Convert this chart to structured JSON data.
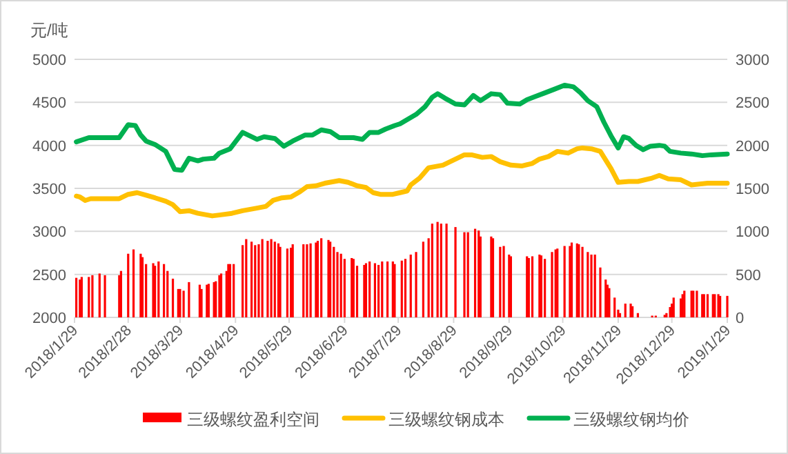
{
  "chart_data": {
    "type": "bar",
    "ylabel": "元/吨",
    "xlim": [
      "2018-01-29",
      "2019-01-29"
    ],
    "xticks": [
      {
        "value": "2018-01-29",
        "label": "2018/1/29"
      },
      {
        "value": "2018-02-28",
        "label": "2018/2/28"
      },
      {
        "value": "2018-03-29",
        "label": "2018/3/29"
      },
      {
        "value": "2018-04-29",
        "label": "2018/4/29"
      },
      {
        "value": "2018-05-29",
        "label": "2018/5/29"
      },
      {
        "value": "2018-06-29",
        "label": "2018/6/29"
      },
      {
        "value": "2018-07-29",
        "label": "2018/7/29"
      },
      {
        "value": "2018-08-29",
        "label": "2018/8/29"
      },
      {
        "value": "2018-09-29",
        "label": "2018/9/29"
      },
      {
        "value": "2018-10-29",
        "label": "2018/10/29"
      },
      {
        "value": "2018-11-29",
        "label": "2018/11/29"
      },
      {
        "value": "2018-12-29",
        "label": "2018/12/29"
      },
      {
        "value": "2019-01-29",
        "label": "2019/1/29"
      }
    ],
    "ylim": [
      2000,
      5000
    ],
    "yticks": [
      2000,
      2500,
      3000,
      3500,
      4000,
      4500,
      5000
    ],
    "y2lim": [
      0,
      3000
    ],
    "y2ticks": [
      0,
      500,
      1000,
      1500,
      2000,
      2500,
      3000
    ],
    "grid": "y",
    "legend": "bottom",
    "series": [
      {
        "name": "三级螺纹盈利空间",
        "axis": "y2",
        "color": "#ff0000",
        "x": [
          "2018-01-30",
          "2018-02-01",
          "2018-02-02",
          "2018-02-06",
          "2018-02-08",
          "2018-02-12",
          "2018-02-15",
          "2018-02-23",
          "2018-02-24",
          "2018-02-28",
          "2018-03-03",
          "2018-03-07",
          "2018-03-08",
          "2018-03-10",
          "2018-03-14",
          "2018-03-15",
          "2018-03-17",
          "2018-03-20",
          "2018-03-22",
          "2018-03-25",
          "2018-03-28",
          "2018-03-29",
          "2018-03-31",
          "2018-04-03",
          "2018-04-09",
          "2018-04-10",
          "2018-04-13",
          "2018-04-14",
          "2018-04-17",
          "2018-04-18",
          "2018-04-20",
          "2018-04-21",
          "2018-04-24",
          "2018-04-25",
          "2018-04-26",
          "2018-04-28",
          "2018-05-03",
          "2018-05-05",
          "2018-05-08",
          "2018-05-10",
          "2018-05-12",
          "2018-05-14",
          "2018-05-17",
          "2018-05-19",
          "2018-05-21",
          "2018-05-23",
          "2018-05-24",
          "2018-05-28",
          "2018-05-30",
          "2018-05-31",
          "2018-06-06",
          "2018-06-08",
          "2018-06-10",
          "2018-06-13",
          "2018-06-14",
          "2018-06-16",
          "2018-06-20",
          "2018-06-21",
          "2018-06-23",
          "2018-06-25",
          "2018-06-27",
          "2018-06-29",
          "2018-07-03",
          "2018-07-04",
          "2018-07-06",
          "2018-07-10",
          "2018-07-11",
          "2018-07-13",
          "2018-07-16",
          "2018-07-18",
          "2018-07-20",
          "2018-07-23",
          "2018-07-26",
          "2018-07-27",
          "2018-07-31",
          "2018-08-02",
          "2018-08-05",
          "2018-08-08",
          "2018-08-12",
          "2018-08-15",
          "2018-08-17",
          "2018-08-20",
          "2018-08-22",
          "2018-08-25",
          "2018-08-30",
          "2018-09-04",
          "2018-09-06",
          "2018-09-10",
          "2018-09-12",
          "2018-09-13",
          "2018-09-19",
          "2018-09-20",
          "2018-09-24",
          "2018-09-26",
          "2018-09-29",
          "2018-09-30",
          "2018-10-09",
          "2018-10-10",
          "2018-10-12",
          "2018-10-16",
          "2018-10-17",
          "2018-10-19",
          "2018-10-23",
          "2018-10-25",
          "2018-10-26",
          "2018-10-30",
          "2018-11-02",
          "2018-11-03",
          "2018-11-06",
          "2018-11-07",
          "2018-11-09",
          "2018-11-12",
          "2018-11-14",
          "2018-11-16",
          "2018-11-19",
          "2018-11-22",
          "2018-11-23",
          "2018-11-24",
          "2018-11-27",
          "2018-11-29",
          "2018-11-30",
          "2018-12-03",
          "2018-12-06",
          "2018-12-07",
          "2018-12-10",
          "2018-12-18",
          "2018-12-20",
          "2018-12-25",
          "2018-12-26",
          "2018-12-28",
          "2018-12-29",
          "2018-12-30",
          "2019-01-03",
          "2019-01-04",
          "2019-01-05",
          "2019-01-09",
          "2019-01-10",
          "2019-01-12",
          "2019-01-15",
          "2019-01-16",
          "2019-01-18",
          "2019-01-21",
          "2019-01-22",
          "2019-01-24",
          "2019-01-25",
          "2019-01-29"
        ],
        "values": [
          460,
          440,
          470,
          470,
          490,
          510,
          490,
          490,
          540,
          740,
          790,
          740,
          700,
          620,
          630,
          600,
          650,
          620,
          540,
          450,
          330,
          330,
          310,
          410,
          380,
          330,
          380,
          390,
          410,
          420,
          490,
          510,
          540,
          620,
          620,
          620,
          840,
          910,
          880,
          840,
          850,
          910,
          890,
          910,
          880,
          860,
          820,
          800,
          810,
          850,
          850,
          850,
          860,
          870,
          890,
          920,
          900,
          880,
          820,
          760,
          740,
          680,
          690,
          680,
          600,
          610,
          630,
          650,
          630,
          610,
          650,
          650,
          650,
          620,
          660,
          680,
          730,
          760,
          880,
          920,
          1090,
          1110,
          1090,
          1090,
          1050,
          990,
          990,
          1030,
          1010,
          940,
          940,
          920,
          820,
          830,
          730,
          710,
          710,
          690,
          710,
          730,
          720,
          680,
          760,
          790,
          800,
          830,
          830,
          870,
          860,
          850,
          820,
          760,
          730,
          730,
          580,
          440,
          380,
          340,
          230,
          90,
          50,
          160,
          160,
          130,
          50,
          20,
          20,
          30,
          50,
          120,
          160,
          230,
          220,
          270,
          310,
          310,
          310,
          310,
          270,
          270,
          270,
          270,
          270,
          270,
          250,
          250
        ]
      },
      {
        "name": "三级螺纹钢成本",
        "type": "line",
        "color": "#ffc000",
        "x": [
          "2018-01-30",
          "2018-02-01",
          "2018-02-04",
          "2018-02-07",
          "2018-02-23",
          "2018-02-28",
          "2018-03-05",
          "2018-03-10",
          "2018-03-15",
          "2018-03-21",
          "2018-03-25",
          "2018-03-29",
          "2018-04-03",
          "2018-04-08",
          "2018-04-16",
          "2018-04-20",
          "2018-04-27",
          "2018-05-03",
          "2018-05-11",
          "2018-05-16",
          "2018-05-20",
          "2018-05-25",
          "2018-05-30",
          "2018-06-04",
          "2018-06-08",
          "2018-06-13",
          "2018-06-18",
          "2018-06-26",
          "2018-07-01",
          "2018-07-06",
          "2018-07-11",
          "2018-07-15",
          "2018-07-19",
          "2018-07-26",
          "2018-07-30",
          "2018-08-03",
          "2018-08-05",
          "2018-08-10",
          "2018-08-15",
          "2018-08-23",
          "2018-08-30",
          "2018-09-04",
          "2018-09-08",
          "2018-09-14",
          "2018-09-19",
          "2018-09-24",
          "2018-09-30",
          "2018-10-06",
          "2018-10-12",
          "2018-10-16",
          "2018-10-21",
          "2018-10-26",
          "2018-11-01",
          "2018-11-06",
          "2018-11-09",
          "2018-11-14",
          "2018-11-19",
          "2018-11-25",
          "2018-11-29",
          "2018-12-05",
          "2018-12-10",
          "2018-12-18",
          "2018-12-22",
          "2018-12-27",
          "2019-01-03",
          "2019-01-09",
          "2019-01-18",
          "2019-01-29"
        ],
        "values": [
          3410,
          3400,
          3360,
          3380,
          3380,
          3430,
          3450,
          3420,
          3390,
          3350,
          3310,
          3230,
          3240,
          3210,
          3180,
          3190,
          3210,
          3240,
          3270,
          3290,
          3360,
          3390,
          3400,
          3460,
          3520,
          3530,
          3560,
          3590,
          3570,
          3530,
          3510,
          3450,
          3430,
          3430,
          3450,
          3470,
          3540,
          3620,
          3740,
          3770,
          3840,
          3890,
          3890,
          3860,
          3870,
          3810,
          3770,
          3760,
          3790,
          3840,
          3870,
          3930,
          3910,
          3960,
          3970,
          3960,
          3930,
          3730,
          3570,
          3580,
          3580,
          3620,
          3650,
          3610,
          3600,
          3540,
          3560,
          3560
        ]
      },
      {
        "name": "三级螺纹钢均价",
        "type": "line",
        "color": "#00b050",
        "x": [
          "2018-01-30",
          "2018-02-06",
          "2018-02-23",
          "2018-02-28",
          "2018-03-04",
          "2018-03-07",
          "2018-03-10",
          "2018-03-15",
          "2018-03-21",
          "2018-03-26",
          "2018-03-30",
          "2018-04-03",
          "2018-04-08",
          "2018-04-11",
          "2018-04-17",
          "2018-04-20",
          "2018-04-26",
          "2018-05-03",
          "2018-05-11",
          "2018-05-15",
          "2018-05-21",
          "2018-05-26",
          "2018-05-31",
          "2018-06-07",
          "2018-06-11",
          "2018-06-16",
          "2018-06-21",
          "2018-06-26",
          "2018-07-04",
          "2018-07-09",
          "2018-07-13",
          "2018-07-18",
          "2018-07-22",
          "2018-07-27",
          "2018-07-30",
          "2018-08-08",
          "2018-08-13",
          "2018-08-17",
          "2018-08-20",
          "2018-08-24",
          "2018-08-30",
          "2018-09-04",
          "2018-09-09",
          "2018-09-13",
          "2018-09-19",
          "2018-09-24",
          "2018-09-28",
          "2018-10-05",
          "2018-10-09",
          "2018-10-14",
          "2018-10-19",
          "2018-10-24",
          "2018-10-30",
          "2018-11-04",
          "2018-11-08",
          "2018-11-12",
          "2018-11-17",
          "2018-11-21",
          "2018-11-25",
          "2018-11-29",
          "2018-12-02",
          "2018-12-05",
          "2018-12-09",
          "2018-12-13",
          "2018-12-17",
          "2018-12-22",
          "2018-12-25",
          "2018-12-28",
          "2019-01-03",
          "2019-01-09",
          "2019-01-15",
          "2019-01-20",
          "2019-01-29"
        ],
        "values": [
          4040,
          4090,
          4090,
          4240,
          4230,
          4120,
          4050,
          4010,
          3930,
          3720,
          3710,
          3850,
          3820,
          3840,
          3850,
          3910,
          3960,
          4150,
          4070,
          4100,
          4080,
          3990,
          4050,
          4120,
          4120,
          4180,
          4160,
          4090,
          4090,
          4070,
          4150,
          4150,
          4190,
          4230,
          4250,
          4360,
          4450,
          4560,
          4600,
          4550,
          4480,
          4470,
          4580,
          4520,
          4600,
          4590,
          4490,
          4480,
          4530,
          4570,
          4610,
          4650,
          4700,
          4680,
          4610,
          4520,
          4450,
          4270,
          4110,
          3970,
          4100,
          4080,
          4000,
          3950,
          3990,
          4000,
          3990,
          3930,
          3910,
          3900,
          3880,
          3890,
          3900
        ]
      }
    ]
  }
}
